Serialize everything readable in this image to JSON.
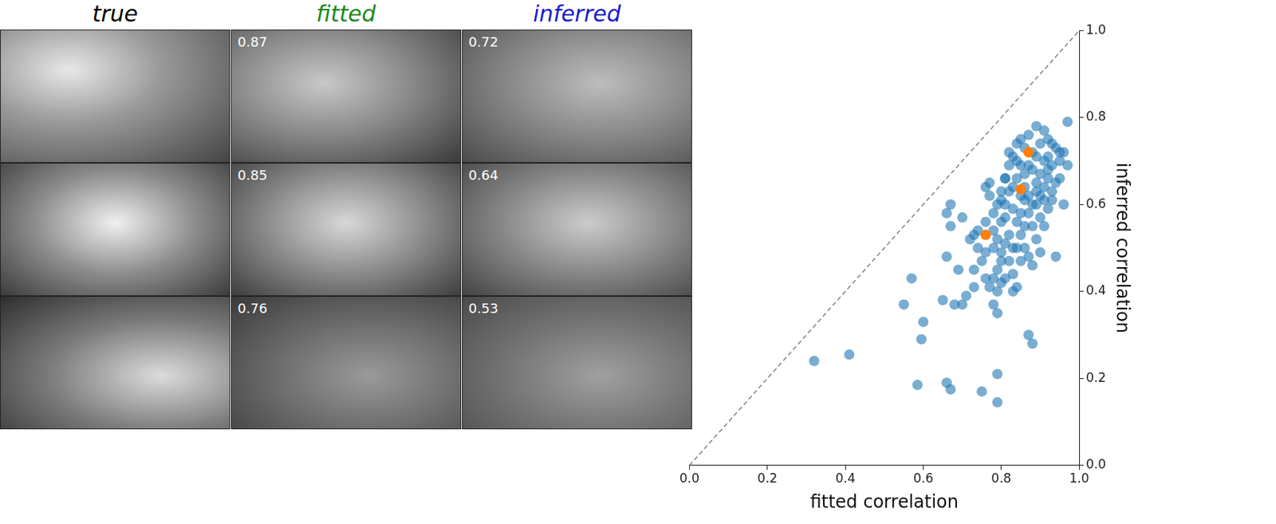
{
  "panels": {
    "column_titles": [
      {
        "text": "true",
        "color": "#000000"
      },
      {
        "text": "fitted",
        "color": "#1a8a1a"
      },
      {
        "text": "inferred",
        "color": "#1a1ad0"
      }
    ],
    "rows": [
      {
        "fitted": 0.87,
        "inferred": 0.72
      },
      {
        "fitted": 0.85,
        "inferred": 0.64
      },
      {
        "fitted": 0.76,
        "inferred": 0.53
      }
    ]
  },
  "chart_data": {
    "type": "scatter",
    "x_label": "fitted correlation",
    "y_label": "inferred correlation",
    "xlim": [
      0,
      1
    ],
    "ylim": [
      0,
      1
    ],
    "xticks": [
      {
        "value": 0,
        "label": "0.0"
      },
      0.2,
      0.4,
      0.6,
      0.8,
      {
        "value": 1,
        "label": "1.0"
      }
    ],
    "yticks": [
      {
        "value": 0,
        "label": "0.0"
      },
      0.2,
      0.4,
      0.6,
      0.8,
      {
        "value": 1,
        "label": "1.0"
      }
    ],
    "grid": false,
    "series": [
      {
        "type": "line",
        "line_style": "dashed",
        "marker": "none",
        "color": "#808080",
        "x": [
          0,
          1
        ],
        "values": [
          0,
          1
        ]
      },
      {
        "type": "scatter",
        "marker": "circle",
        "color": "#1f77b4",
        "x": [
          0.32,
          0.41,
          0.55,
          0.57,
          0.585,
          0.595,
          0.6,
          0.65,
          0.66,
          0.67,
          0.75,
          0.79,
          0.79,
          0.87,
          0.88,
          0.66,
          0.68,
          0.7,
          0.71,
          0.73,
          0.73,
          0.69,
          0.67,
          0.66,
          0.67,
          0.7,
          0.72,
          0.74,
          0.76,
          0.76,
          0.75,
          0.78,
          0.79,
          0.8,
          0.81,
          0.83,
          0.84,
          0.83,
          0.82,
          0.8,
          0.78,
          0.77,
          0.79,
          0.84,
          0.86,
          0.85,
          0.87,
          0.88,
          0.89,
          0.9,
          0.86,
          0.87,
          0.88,
          0.85,
          0.84,
          0.83,
          0.82,
          0.81,
          0.8,
          0.79,
          0.78,
          0.78,
          0.77,
          0.77,
          0.76,
          0.79,
          0.8,
          0.81,
          0.82,
          0.83,
          0.84,
          0.85,
          0.86,
          0.87,
          0.89,
          0.91,
          0.92,
          0.93,
          0.94,
          0.95,
          0.97,
          0.96,
          0.97,
          0.96,
          0.95,
          0.94,
          0.93,
          0.92,
          0.91,
          0.9,
          0.89,
          0.88,
          0.87,
          0.86,
          0.85,
          0.84,
          0.83,
          0.82,
          0.81,
          0.8,
          0.91,
          0.92,
          0.93,
          0.9,
          0.89,
          0.9,
          0.88,
          0.91,
          0.93,
          0.94,
          0.82,
          0.84,
          0.88,
          0.89,
          0.9,
          0.86,
          0.87,
          0.91,
          0.92,
          0.81,
          0.8,
          0.79,
          0.76,
          0.74,
          0.73,
          0.78,
          0.83,
          0.85,
          0.86,
          0.89,
          0.92,
          0.95,
          0.81,
          0.85
        ],
        "values": [
          0.24,
          0.255,
          0.37,
          0.43,
          0.185,
          0.29,
          0.33,
          0.38,
          0.19,
          0.175,
          0.17,
          0.21,
          0.145,
          0.3,
          0.28,
          0.48,
          0.37,
          0.37,
          0.39,
          0.41,
          0.45,
          0.45,
          0.6,
          0.58,
          0.55,
          0.57,
          0.52,
          0.54,
          0.56,
          0.49,
          0.47,
          0.43,
          0.4,
          0.42,
          0.43,
          0.4,
          0.41,
          0.44,
          0.47,
          0.47,
          0.37,
          0.41,
          0.35,
          0.5,
          0.5,
          0.47,
          0.48,
          0.46,
          0.52,
          0.49,
          0.55,
          0.58,
          0.6,
          0.58,
          0.56,
          0.59,
          0.53,
          0.51,
          0.49,
          0.52,
          0.54,
          0.58,
          0.62,
          0.65,
          0.64,
          0.6,
          0.63,
          0.66,
          0.69,
          0.71,
          0.74,
          0.75,
          0.73,
          0.76,
          0.78,
          0.77,
          0.75,
          0.74,
          0.73,
          0.72,
          0.79,
          0.72,
          0.69,
          0.6,
          0.66,
          0.65,
          0.63,
          0.66,
          0.64,
          0.62,
          0.65,
          0.68,
          0.69,
          0.67,
          0.69,
          0.66,
          0.64,
          0.63,
          0.6,
          0.61,
          0.7,
          0.71,
          0.69,
          0.67,
          0.6,
          0.57,
          0.55,
          0.55,
          0.61,
          0.48,
          0.72,
          0.7,
          0.72,
          0.71,
          0.74,
          0.64,
          0.62,
          0.61,
          0.59,
          0.57,
          0.56,
          0.45,
          0.43,
          0.5,
          0.53,
          0.5,
          0.5,
          0.53,
          0.61,
          0.63,
          0.68,
          0.7,
          0.66,
          0.62
        ]
      },
      {
        "type": "scatter",
        "marker": "circle",
        "color": "#ff7f0e",
        "x": [
          0.87,
          0.85,
          0.76
        ],
        "values": [
          0.72,
          0.635,
          0.53
        ]
      }
    ]
  }
}
